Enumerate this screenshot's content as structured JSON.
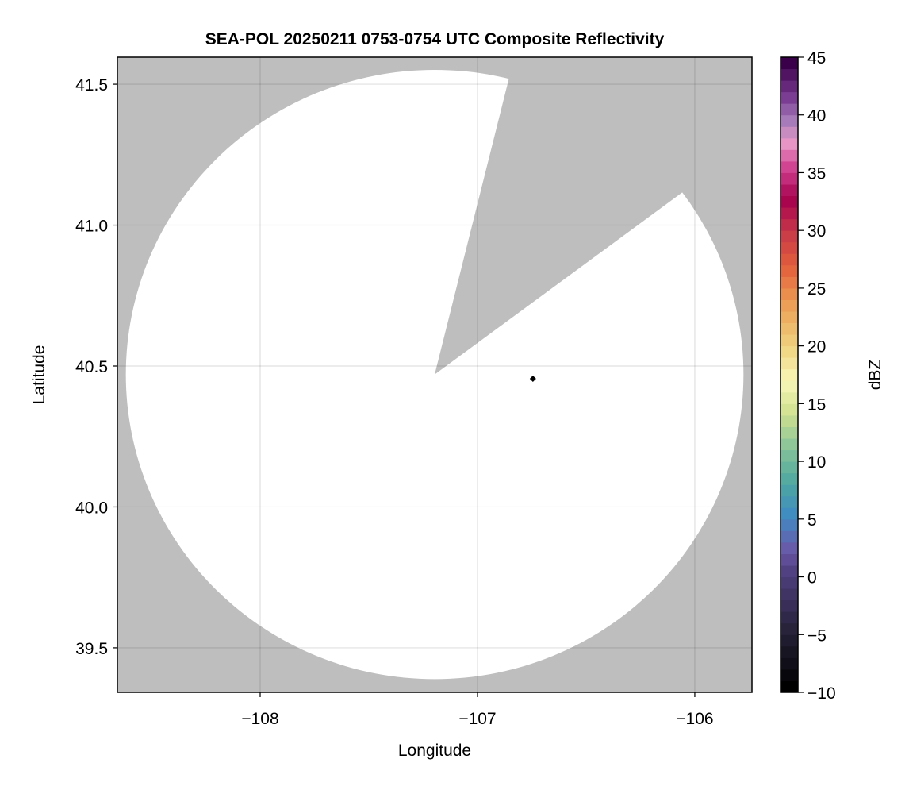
{
  "chart_data": {
    "type": "heatmap",
    "title": "SEA-POL 20250211 0753-0754 UTC Composite Reflectivity",
    "xlabel": "Longitude",
    "ylabel": "Latitude",
    "xlim": [
      -108.657,
      -105.737
    ],
    "ylim": [
      39.342,
      41.596
    ],
    "xticks": [
      -108,
      -107,
      -106
    ],
    "xtick_labels": [
      "−108",
      "−107",
      "−106"
    ],
    "yticks": [
      39.5,
      40.0,
      40.5,
      41.0,
      41.5
    ],
    "ytick_labels": [
      "39.5",
      "40.0",
      "40.5",
      "41.0",
      "41.5"
    ],
    "grid": true,
    "background_color": "#bebebe",
    "coverage": {
      "center_lon": -107.197,
      "center_lat": 40.47,
      "range_km": 120,
      "fill_color": "#ffffff",
      "blocked_sector_azimuth_deg": [
        13.9,
        53.3
      ]
    },
    "points": [
      {
        "lon": -106.745,
        "lat": 40.455,
        "marker": "diamond",
        "color": "#000000"
      }
    ],
    "colorbar": {
      "label": "dBZ",
      "range": [
        -10,
        45
      ],
      "step": 1,
      "ticks": [
        -10,
        -5,
        0,
        5,
        10,
        15,
        20,
        25,
        30,
        35,
        40,
        45
      ],
      "tick_labels": [
        "−10",
        "−5",
        "0",
        "5",
        "10",
        "15",
        "20",
        "25",
        "30",
        "35",
        "40",
        "45"
      ],
      "color_stops": [
        [
          -10,
          "#000000"
        ],
        [
          -5,
          "#27223a"
        ],
        [
          0,
          "#4f3f7e"
        ],
        [
          2,
          "#6a58a8"
        ],
        [
          5,
          "#3f8ac4"
        ],
        [
          8,
          "#4fa8a0"
        ],
        [
          11,
          "#85c39a"
        ],
        [
          14,
          "#cfe08f"
        ],
        [
          17,
          "#f9f7b8"
        ],
        [
          20,
          "#f0d27e"
        ],
        [
          24,
          "#ec9a52"
        ],
        [
          27,
          "#e3603c"
        ],
        [
          30,
          "#c83a48"
        ],
        [
          33,
          "#a6004e"
        ],
        [
          36,
          "#d44896"
        ],
        [
          38,
          "#e79ac8"
        ],
        [
          40,
          "#a47ab8"
        ],
        [
          42,
          "#7a3b92"
        ],
        [
          45,
          "#3a004a"
        ]
      ]
    }
  }
}
